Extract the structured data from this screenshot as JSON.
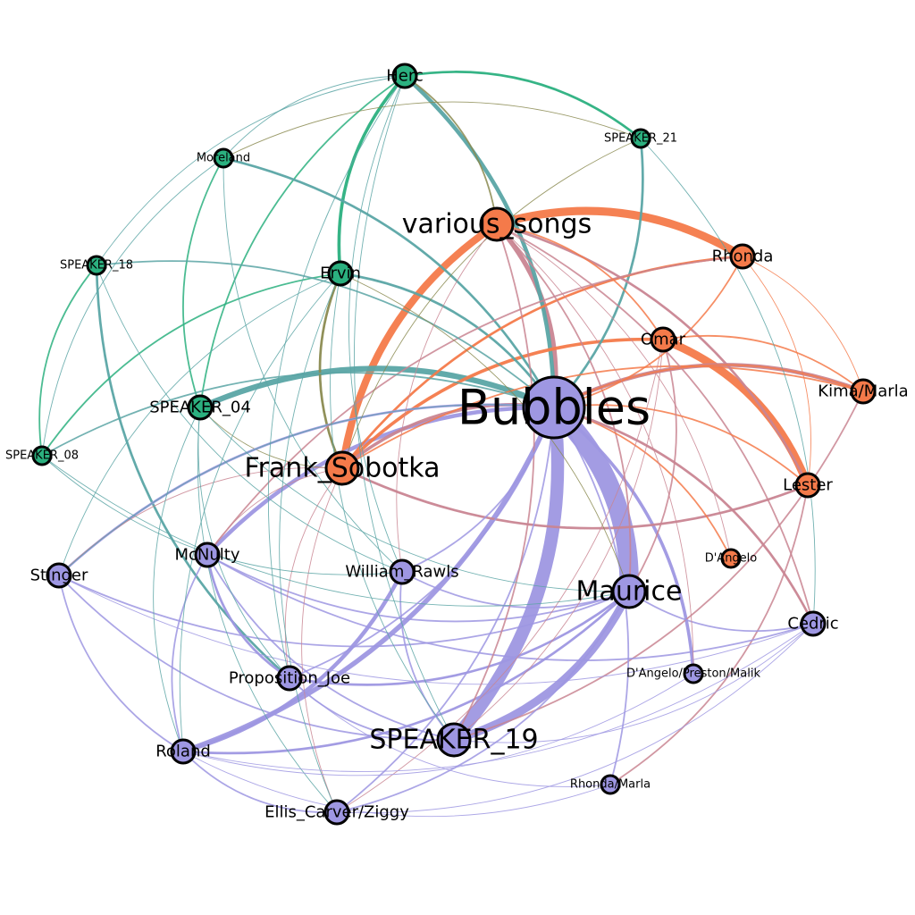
{
  "colors": {
    "green": "#2bb07f",
    "teal": "#5aa5a5",
    "orange": "#f47a4a",
    "pink": "#c98592",
    "purple": "#9e97e2",
    "olive": "#8a8a50",
    "node_outline": "#000000"
  },
  "nodes": [
    {
      "id": "Herc",
      "label": "Herc",
      "group": "green",
      "size": "m"
    },
    {
      "id": "SPEAKER_21",
      "label": "SPEAKER_21",
      "group": "green",
      "size": "s"
    },
    {
      "id": "Moreland",
      "label": "Moreland",
      "group": "green",
      "size": "s"
    },
    {
      "id": "SPEAKER_18",
      "label": "SPEAKER_18",
      "group": "green",
      "size": "s"
    },
    {
      "id": "Ervin",
      "label": "Ervin",
      "group": "green",
      "size": "m"
    },
    {
      "id": "SPEAKER_04",
      "label": "SPEAKER_04",
      "group": "green",
      "size": "m"
    },
    {
      "id": "SPEAKER_08",
      "label": "SPEAKER_08",
      "group": "green",
      "size": "s"
    },
    {
      "id": "various_songs",
      "label": "various_songs",
      "group": "orange",
      "size": "l"
    },
    {
      "id": "Rhonda",
      "label": "Rhonda",
      "group": "orange",
      "size": "m"
    },
    {
      "id": "Omar",
      "label": "Omar",
      "group": "orange",
      "size": "m"
    },
    {
      "id": "Kima/Marla",
      "label": "Kima/Marla",
      "group": "orange",
      "size": "m"
    },
    {
      "id": "Lester",
      "label": "Lester",
      "group": "orange",
      "size": "m"
    },
    {
      "id": "D'Angelo",
      "label": "D'Angelo",
      "group": "orange",
      "size": "s"
    },
    {
      "id": "Frank_Sobotka",
      "label": "Frank_Sobotka",
      "group": "orange",
      "size": "l"
    },
    {
      "id": "Bubbles",
      "label": "Bubbles",
      "group": "purple",
      "size": "xl"
    },
    {
      "id": "Maurice",
      "label": "Maurice",
      "group": "purple",
      "size": "l"
    },
    {
      "id": "Cedric",
      "label": "Cedric",
      "group": "purple",
      "size": "m"
    },
    {
      "id": "D'Angelo/Preston/Malik",
      "label": "D'Angelo/Preston/Malik",
      "group": "purple",
      "size": "s"
    },
    {
      "id": "Rhonda/Marla",
      "label": "Rhonda/Marla",
      "group": "purple",
      "size": "s"
    },
    {
      "id": "SPEAKER_19",
      "label": "SPEAKER_19",
      "group": "purple",
      "size": "l"
    },
    {
      "id": "Ellis_Carver/Ziggy",
      "label": "Ellis_Carver/Ziggy",
      "group": "purple",
      "size": "m"
    },
    {
      "id": "Roland",
      "label": "Roland",
      "group": "purple",
      "size": "m"
    },
    {
      "id": "Proposition_Joe",
      "label": "Proposition_Joe",
      "group": "purple",
      "size": "m"
    },
    {
      "id": "William_Rawls",
      "label": "William_Rawls",
      "group": "purple",
      "size": "m"
    },
    {
      "id": "McNulty",
      "label": "McNulty",
      "group": "purple",
      "size": "m"
    },
    {
      "id": "Stinger",
      "label": "Stinger",
      "group": "purple",
      "size": "m"
    }
  ],
  "edges": [
    {
      "source": "Bubbles",
      "target": "Maurice",
      "color": "purple",
      "weight": 24
    },
    {
      "source": "Bubbles",
      "target": "SPEAKER_19",
      "color": "purple",
      "weight": 16
    },
    {
      "source": "SPEAKER_19",
      "target": "Maurice",
      "color": "purple",
      "weight": 10
    },
    {
      "source": "various_songs",
      "target": "Rhonda",
      "color": "orange",
      "weight": 10
    },
    {
      "source": "Omar",
      "target": "Lester",
      "color": "orange",
      "weight": 10
    },
    {
      "source": "Frank_Sobotka",
      "target": "various_songs",
      "color": "orange",
      "weight": 9
    },
    {
      "source": "SPEAKER_04",
      "target": "Bubbles",
      "color": "teal",
      "weight": 7
    },
    {
      "source": "Bubbles",
      "target": "Roland",
      "color": "purple",
      "weight": 6
    },
    {
      "source": "Bubbles",
      "target": "Kima/Marla",
      "color": "pink",
      "weight": 5
    },
    {
      "source": "various_songs",
      "target": "Bubbles",
      "color": "pink",
      "weight": 6
    },
    {
      "source": "Herc",
      "target": "Bubbles",
      "color": "teal",
      "weight": 5
    },
    {
      "source": "McNulty",
      "target": "Bubbles",
      "color": "purple",
      "weight": 5
    },
    {
      "source": "William_Rawls",
      "target": "Roland",
      "color": "purple",
      "weight": 5
    },
    {
      "source": "Bubbles",
      "target": "D'Angelo/Preston/Malik",
      "color": "purple",
      "weight": 4
    },
    {
      "source": "Frank_Sobotka",
      "target": "Omar",
      "color": "orange",
      "weight": 4
    },
    {
      "source": "Ervin",
      "target": "Herc",
      "color": "green",
      "weight": 4
    },
    {
      "source": "Frank_Sobotka",
      "target": "Bubbles",
      "color": "pink",
      "weight": 4
    },
    {
      "source": "Ervin",
      "target": "Frank_Sobotka",
      "color": "olive",
      "weight": 3
    },
    {
      "source": "Ervin",
      "target": "Bubbles",
      "color": "teal",
      "weight": 3
    },
    {
      "source": "SPEAKER_18",
      "target": "Proposition_Joe",
      "color": "teal",
      "weight": 3
    },
    {
      "source": "Herc",
      "target": "SPEAKER_21",
      "color": "green",
      "weight": 3
    },
    {
      "source": "SPEAKER_08",
      "target": "Ervin",
      "color": "green",
      "weight": 2
    },
    {
      "source": "Moreland",
      "target": "SPEAKER_04",
      "color": "green",
      "weight": 2
    },
    {
      "source": "Herc",
      "target": "SPEAKER_04",
      "color": "green",
      "weight": 2
    },
    {
      "source": "SPEAKER_18",
      "target": "SPEAKER_08",
      "color": "green",
      "weight": 2
    },
    {
      "source": "Moreland",
      "target": "Bubbles",
      "color": "teal",
      "weight": 3
    },
    {
      "source": "SPEAKER_21",
      "target": "Bubbles",
      "color": "teal",
      "weight": 3
    },
    {
      "source": "SPEAKER_04",
      "target": "Frank_Sobotka",
      "color": "olive",
      "weight": 1
    },
    {
      "source": "Herc",
      "target": "various_songs",
      "color": "olive",
      "weight": 2
    },
    {
      "source": "Frank_Sobotka",
      "target": "Rhonda",
      "color": "orange",
      "weight": 3
    },
    {
      "source": "Frank_Sobotka",
      "target": "Lester",
      "color": "pink",
      "weight": 3
    },
    {
      "source": "Frank_Sobotka",
      "target": "Kima/Marla",
      "color": "orange",
      "weight": 2
    },
    {
      "source": "various_songs",
      "target": "Lester",
      "color": "pink",
      "weight": 3
    },
    {
      "source": "various_songs",
      "target": "Maurice",
      "color": "pink",
      "weight": 2
    },
    {
      "source": "various_songs",
      "target": "Cedric",
      "color": "pink",
      "weight": 2
    },
    {
      "source": "Omar",
      "target": "Kima/Marla",
      "color": "orange",
      "weight": 2
    },
    {
      "source": "Rhonda",
      "target": "Kima/Marla",
      "color": "orange",
      "weight": 1
    },
    {
      "source": "Rhonda",
      "target": "Lester",
      "color": "orange",
      "weight": 1
    },
    {
      "source": "Lester",
      "target": "Rhonda/Marla",
      "color": "pink",
      "weight": 2
    },
    {
      "source": "Kima/Marla",
      "target": "SPEAKER_19",
      "color": "pink",
      "weight": 2
    },
    {
      "source": "McNulty",
      "target": "Maurice",
      "color": "purple",
      "weight": 2
    },
    {
      "source": "Stinger",
      "target": "Bubbles",
      "color": "purple",
      "weight": 3
    },
    {
      "source": "Stinger",
      "target": "SPEAKER_19",
      "color": "purple",
      "weight": 2
    },
    {
      "source": "Stinger",
      "target": "Maurice",
      "color": "purple",
      "weight": 2
    },
    {
      "source": "Stinger",
      "target": "Roland",
      "color": "purple",
      "weight": 2
    },
    {
      "source": "Stinger",
      "target": "Cedric",
      "color": "purple",
      "weight": 1
    },
    {
      "source": "McNulty",
      "target": "Proposition_Joe",
      "color": "purple",
      "weight": 3
    },
    {
      "source": "McNulty",
      "target": "SPEAKER_19",
      "color": "purple",
      "weight": 2
    },
    {
      "source": "McNulty",
      "target": "Roland",
      "color": "purple",
      "weight": 2
    },
    {
      "source": "McNulty",
      "target": "Cedric",
      "color": "purple",
      "weight": 2
    },
    {
      "source": "William_Rawls",
      "target": "SPEAKER_19",
      "color": "purple",
      "weight": 2
    },
    {
      "source": "William_Rawls",
      "target": "Maurice",
      "color": "purple",
      "weight": 2
    },
    {
      "source": "Proposition_Joe",
      "target": "Maurice",
      "color": "purple",
      "weight": 3
    },
    {
      "source": "Proposition_Joe",
      "target": "SPEAKER_19",
      "color": "purple",
      "weight": 2
    },
    {
      "source": "Roland",
      "target": "Ellis_Carver/Ziggy",
      "color": "purple",
      "weight": 2
    },
    {
      "source": "Roland",
      "target": "Maurice",
      "color": "purple",
      "weight": 3
    },
    {
      "source": "Ellis_Carver/Ziggy",
      "target": "Bubbles",
      "color": "purple",
      "weight": 2
    },
    {
      "source": "Ellis_Carver/Ziggy",
      "target": "Maurice",
      "color": "purple",
      "weight": 2
    },
    {
      "source": "Ellis_Carver/Ziggy",
      "target": "Cedric",
      "color": "purple",
      "weight": 1
    },
    {
      "source": "Rhonda/Marla",
      "target": "Bubbles",
      "color": "purple",
      "weight": 2
    },
    {
      "source": "Rhonda/Marla",
      "target": "Roland",
      "color": "purple",
      "weight": 1
    },
    {
      "source": "Maurice",
      "target": "Cedric",
      "color": "purple",
      "weight": 2
    },
    {
      "source": "D'Angelo",
      "target": "Bubbles",
      "color": "orange",
      "weight": 2
    },
    {
      "source": "D'Angelo",
      "target": "various_songs",
      "color": "pink",
      "weight": 1
    },
    {
      "source": "Bubbles",
      "target": "Cedric",
      "color": "pink",
      "weight": 3
    },
    {
      "source": "Lester",
      "target": "Bubbles",
      "color": "orange",
      "weight": 2
    },
    {
      "source": "Omar",
      "target": "Maurice",
      "color": "pink",
      "weight": 2
    },
    {
      "source": "Rhonda",
      "target": "McNulty",
      "color": "pink",
      "weight": 2
    },
    {
      "source": "Frank_Sobotka",
      "target": "Ellis_Carver/Ziggy",
      "color": "pink",
      "weight": 1
    },
    {
      "source": "Frank_Sobotka",
      "target": "Stinger",
      "color": "pink",
      "weight": 1
    },
    {
      "source": "Frank_Sobotka",
      "target": "McNulty",
      "color": "pink",
      "weight": 1
    },
    {
      "source": "Frank_Sobotka",
      "target": "Proposition_Joe",
      "color": "pink",
      "weight": 1
    },
    {
      "source": "various_songs",
      "target": "SPEAKER_19",
      "color": "pink",
      "weight": 2
    },
    {
      "source": "Omar",
      "target": "Ellis_Carver/Ziggy",
      "color": "pink",
      "weight": 1
    },
    {
      "source": "Herc",
      "target": "Proposition_Joe",
      "color": "teal",
      "weight": 1
    },
    {
      "source": "Herc",
      "target": "William_Rawls",
      "color": "teal",
      "weight": 1
    },
    {
      "source": "Herc",
      "target": "SPEAKER_19",
      "color": "teal",
      "weight": 1
    },
    {
      "source": "Herc",
      "target": "Moreland",
      "color": "teal",
      "weight": 1
    },
    {
      "source": "Herc",
      "target": "SPEAKER_18",
      "color": "teal",
      "weight": 1
    },
    {
      "source": "SPEAKER_21",
      "target": "Moreland",
      "color": "olive",
      "weight": 1
    },
    {
      "source": "SPEAKER_21",
      "target": "Frank_Sobotka",
      "color": "olive",
      "weight": 1
    },
    {
      "source": "Moreland",
      "target": "William_Rawls",
      "color": "teal",
      "weight": 1
    },
    {
      "source": "Moreland",
      "target": "SPEAKER_08",
      "color": "teal",
      "weight": 1
    },
    {
      "source": "SPEAKER_18",
      "target": "Bubbles",
      "color": "teal",
      "weight": 2
    },
    {
      "source": "SPEAKER_18",
      "target": "William_Rawls",
      "color": "teal",
      "weight": 1
    },
    {
      "source": "SPEAKER_04",
      "target": "Proposition_Joe",
      "color": "teal",
      "weight": 1
    },
    {
      "source": "SPEAKER_04",
      "target": "Ellis_Carver/Ziggy",
      "color": "teal",
      "weight": 1
    },
    {
      "source": "SPEAKER_04",
      "target": "Maurice",
      "color": "teal",
      "weight": 1
    },
    {
      "source": "SPEAKER_04",
      "target": "Roland",
      "color": "teal",
      "weight": 1
    },
    {
      "source": "SPEAKER_08",
      "target": "Bubbles",
      "color": "teal",
      "weight": 2
    },
    {
      "source": "SPEAKER_08",
      "target": "Maurice",
      "color": "teal",
      "weight": 1
    },
    {
      "source": "SPEAKER_08",
      "target": "William_Rawls",
      "color": "teal",
      "weight": 1
    },
    {
      "source": "Ervin",
      "target": "Roland",
      "color": "teal",
      "weight": 1
    },
    {
      "source": "Ervin",
      "target": "SPEAKER_19",
      "color": "teal",
      "weight": 1
    },
    {
      "source": "Ervin",
      "target": "Ellis_Carver/Ziggy",
      "color": "teal",
      "weight": 1
    },
    {
      "source": "Stinger",
      "target": "Bubbles",
      "color": "teal",
      "weight": 1
    },
    {
      "source": "Stinger",
      "target": "Ervin",
      "color": "teal",
      "weight": 1
    },
    {
      "source": "Ervin",
      "target": "Maurice",
      "color": "olive",
      "weight": 1
    },
    {
      "source": "Cedric",
      "target": "SPEAKER_21",
      "color": "teal",
      "weight": 1
    },
    {
      "source": "Roland",
      "target": "Cedric",
      "color": "purple",
      "weight": 1
    },
    {
      "source": "SPEAKER_19",
      "target": "Cedric",
      "color": "purple",
      "weight": 1
    },
    {
      "source": "D'Angelo/Preston/Malik",
      "target": "Roland",
      "color": "purple",
      "weight": 1
    },
    {
      "source": "Rhonda/Marla",
      "target": "Proposition_Joe",
      "color": "purple",
      "weight": 1
    },
    {
      "source": "Proposition_Joe",
      "target": "Bubbles",
      "color": "purple",
      "weight": 2
    },
    {
      "source": "William_Rawls",
      "target": "Bubbles",
      "color": "purple",
      "weight": 2
    },
    {
      "source": "Omar",
      "target": "SPEAKER_19",
      "color": "pink",
      "weight": 1
    },
    {
      "source": "Rhonda",
      "target": "Bubbles",
      "color": "orange",
      "weight": 2
    },
    {
      "source": "Kima/Marla",
      "target": "Bubbles",
      "color": "orange",
      "weight": 2
    },
    {
      "source": "various_songs",
      "target": "Omar",
      "color": "orange",
      "weight": 2
    },
    {
      "source": "various_songs",
      "target": "William_Rawls",
      "color": "pink",
      "weight": 1
    },
    {
      "source": "various_songs",
      "target": "D'Angelo/Preston/Malik",
      "color": "pink",
      "weight": 1
    }
  ]
}
